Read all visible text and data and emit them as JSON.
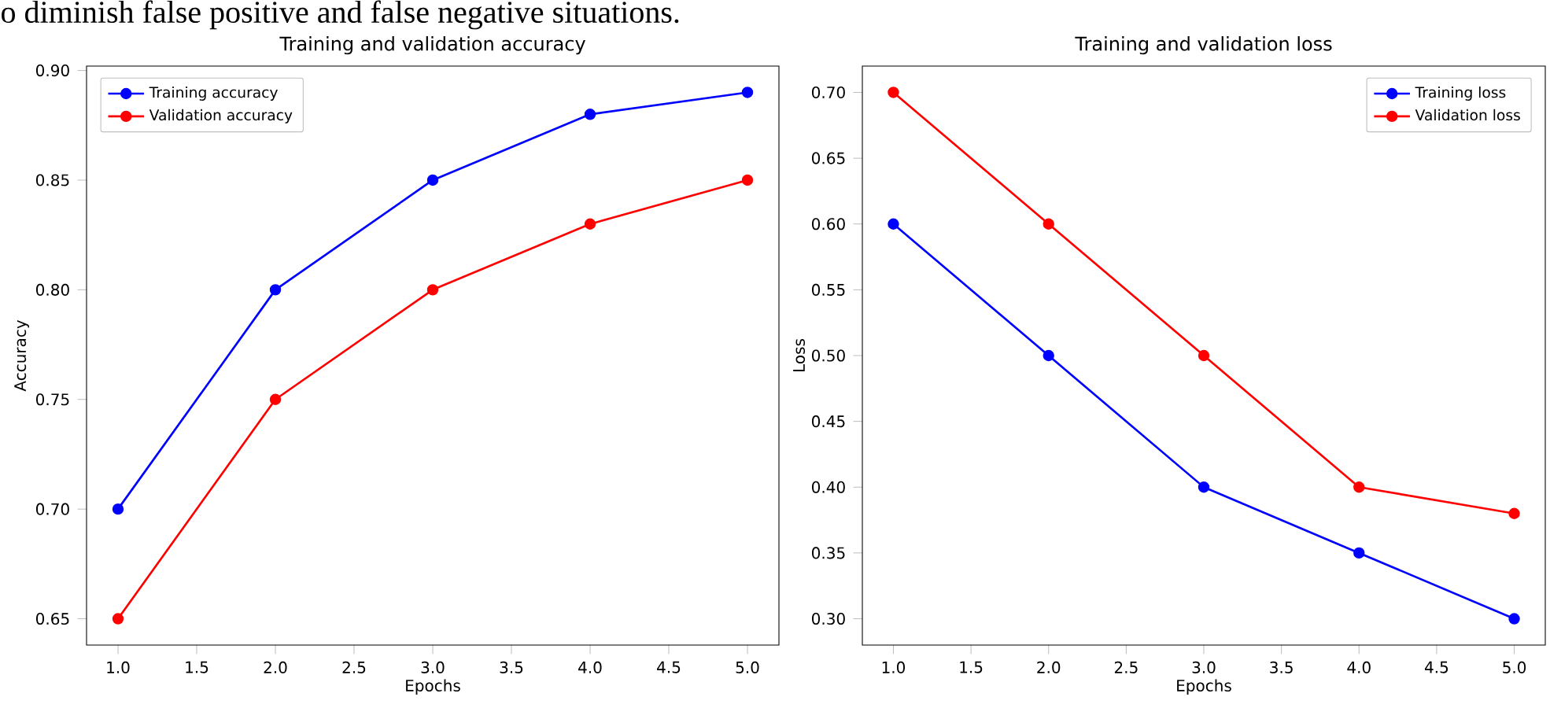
{
  "chart_data": [
    {
      "type": "line",
      "title": "Training and validation accuracy",
      "xlabel": "Epochs",
      "ylabel": "Accuracy",
      "annotations": [
        "o diminish false positive and false negative situations."
      ],
      "x": [
        1,
        2,
        3,
        4,
        5
      ],
      "series": [
        {
          "name": "Training accuracy",
          "color": "#0000ff",
          "values": [
            0.7,
            0.8,
            0.85,
            0.88,
            0.89
          ]
        },
        {
          "name": "Validation accuracy",
          "color": "#ff0000",
          "values": [
            0.65,
            0.75,
            0.8,
            0.83,
            0.85
          ]
        }
      ],
      "xlim": [
        0.8,
        5.2
      ],
      "xticks": [
        {
          "value": 1,
          "label": "1.0"
        },
        {
          "value": 1.5,
          "label": "1.5"
        },
        {
          "value": 2,
          "label": "2.0"
        },
        {
          "value": 2.5,
          "label": "2.5"
        },
        {
          "value": 3,
          "label": "3.0"
        },
        {
          "value": 3.5,
          "label": "3.5"
        },
        {
          "value": 4,
          "label": "4.0"
        },
        {
          "value": 4.5,
          "label": "4.5"
        },
        {
          "value": 5,
          "label": "5.0"
        }
      ],
      "ylim": [
        0.638,
        0.902
      ],
      "yticks": [
        {
          "value": 0.65,
          "label": "0.65"
        },
        {
          "value": 0.7,
          "label": "0.70"
        },
        {
          "value": 0.75,
          "label": "0.75"
        },
        {
          "value": 0.8,
          "label": "0.80"
        },
        {
          "value": 0.85,
          "label": "0.85"
        },
        {
          "value": 0.9,
          "label": "0.90"
        }
      ],
      "legend": "top left",
      "marker": "circle",
      "grid": false
    },
    {
      "type": "line",
      "title": "Training and validation loss",
      "xlabel": "Epochs",
      "ylabel": "Loss",
      "x": [
        1,
        2,
        3,
        4,
        5
      ],
      "series": [
        {
          "name": "Training loss",
          "color": "#0000ff",
          "values": [
            0.6,
            0.5,
            0.4,
            0.35,
            0.3
          ]
        },
        {
          "name": "Validation loss",
          "color": "#ff0000",
          "values": [
            0.7,
            0.6,
            0.5,
            0.4,
            0.38
          ]
        }
      ],
      "xlim": [
        0.8,
        5.2
      ],
      "xticks": [
        {
          "value": 1,
          "label": "1.0"
        },
        {
          "value": 1.5,
          "label": "1.5"
        },
        {
          "value": 2,
          "label": "2.0"
        },
        {
          "value": 2.5,
          "label": "2.5"
        },
        {
          "value": 3,
          "label": "3.0"
        },
        {
          "value": 3.5,
          "label": "3.5"
        },
        {
          "value": 4,
          "label": "4.0"
        },
        {
          "value": 4.5,
          "label": "4.5"
        },
        {
          "value": 5,
          "label": "5.0"
        }
      ],
      "ylim": [
        0.28,
        0.72
      ],
      "yticks": [
        {
          "value": 0.3,
          "label": "0.30"
        },
        {
          "value": 0.35,
          "label": "0.35"
        },
        {
          "value": 0.4,
          "label": "0.40"
        },
        {
          "value": 0.45,
          "label": "0.45"
        },
        {
          "value": 0.5,
          "label": "0.50"
        },
        {
          "value": 0.55,
          "label": "0.55"
        },
        {
          "value": 0.6,
          "label": "0.60"
        },
        {
          "value": 0.65,
          "label": "0.65"
        },
        {
          "value": 0.7,
          "label": "0.70"
        }
      ],
      "legend": "top right",
      "marker": "circle",
      "grid": false
    }
  ]
}
